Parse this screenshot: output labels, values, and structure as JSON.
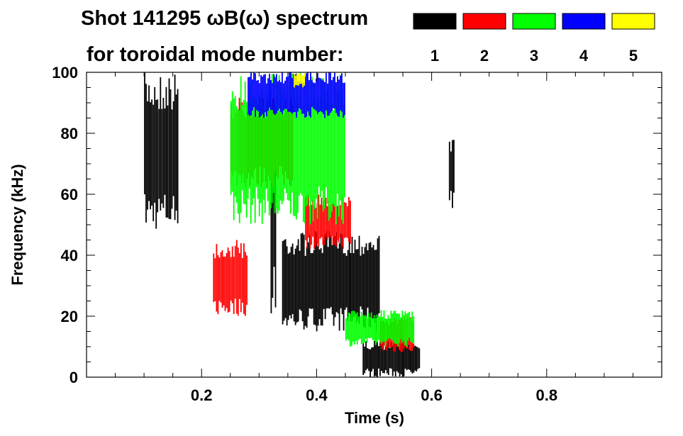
{
  "chart_data": {
    "type": "heatmap",
    "title_line1": "Shot 141295 ωB(ω) spectrum",
    "title_line2": "for toroidal mode number:",
    "xlabel": "Time (s)",
    "ylabel": "Frequency (kHz)",
    "xlim": [
      0,
      1.0
    ],
    "ylim": [
      0,
      100
    ],
    "x_ticks": [
      0.2,
      0.4,
      0.6,
      0.8
    ],
    "x_tick_labels": [
      "0.2",
      "0.4",
      "0.6",
      "0.8"
    ],
    "y_ticks": [
      0,
      20,
      40,
      60,
      80,
      100
    ],
    "y_tick_labels": [
      "0",
      "20",
      "40",
      "60",
      "80",
      "100"
    ],
    "legend": [
      {
        "label": "1",
        "color": "#000000"
      },
      {
        "label": "2",
        "color": "#ff0000"
      },
      {
        "label": "3",
        "color": "#00ff00"
      },
      {
        "label": "4",
        "color": "#0000ff"
      },
      {
        "label": "5",
        "color": "#ffff00"
      }
    ],
    "mode_regions": [
      {
        "mode": "1",
        "t": [
          0.1,
          0.16
        ],
        "f": [
          48,
          100
        ]
      },
      {
        "mode": "1",
        "t": [
          0.32,
          0.33
        ],
        "f": [
          20,
          90
        ]
      },
      {
        "mode": "1",
        "t": [
          0.34,
          0.51
        ],
        "f": [
          15,
          48
        ]
      },
      {
        "mode": "1",
        "t": [
          0.48,
          0.58
        ],
        "f": [
          0,
          12
        ]
      },
      {
        "mode": "1",
        "t": [
          0.63,
          0.64
        ],
        "f": [
          55,
          80
        ]
      },
      {
        "mode": "2",
        "t": [
          0.22,
          0.28
        ],
        "f": [
          20,
          45
        ]
      },
      {
        "mode": "2",
        "t": [
          0.25,
          0.36
        ],
        "f": [
          62,
          92
        ]
      },
      {
        "mode": "2",
        "t": [
          0.38,
          0.46
        ],
        "f": [
          42,
          60
        ]
      },
      {
        "mode": "2",
        "t": [
          0.51,
          0.57
        ],
        "f": [
          8,
          20
        ]
      },
      {
        "mode": "3",
        "t": [
          0.25,
          0.45
        ],
        "f": [
          50,
          100
        ]
      },
      {
        "mode": "3",
        "t": [
          0.45,
          0.57
        ],
        "f": [
          10,
          22
        ]
      },
      {
        "mode": "4",
        "t": [
          0.28,
          0.45
        ],
        "f": [
          85,
          100
        ]
      },
      {
        "mode": "5",
        "t": [
          0.36,
          0.38
        ],
        "f": [
          95,
          100
        ]
      }
    ]
  }
}
